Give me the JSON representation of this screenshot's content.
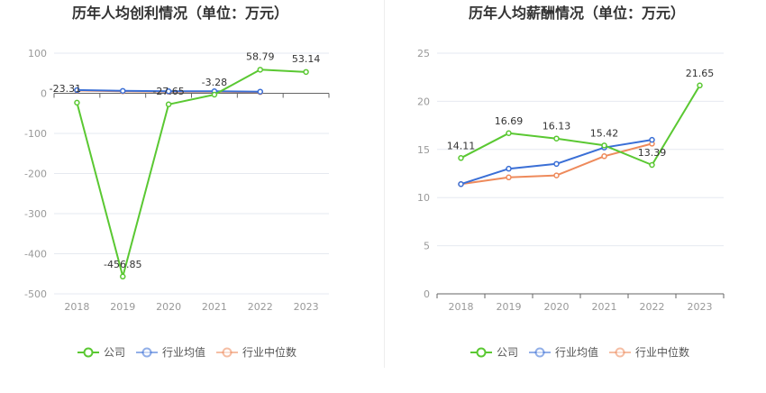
{
  "colors": {
    "company": "#5ac832",
    "industry_avg": "#3a6fd6",
    "industry_median": "#ee8a5b",
    "grid": "#e6e9f0",
    "axis": "#666666",
    "divider": "#eeeeee"
  },
  "legend": {
    "company": "公司",
    "industry_avg": "行业均值",
    "industry_median": "行业中位数"
  },
  "chart_data": [
    {
      "type": "line",
      "title": "历年人均创利情况（单位：万元）",
      "categories": [
        "2018",
        "2019",
        "2020",
        "2021",
        "2022",
        "2023"
      ],
      "ylim": [
        -500,
        100
      ],
      "yticks": [
        "100",
        "0",
        "-100",
        "-200",
        "-300",
        "-400",
        "-500"
      ],
      "grid": true,
      "legend_position": "bottom",
      "series": [
        {
          "name": "公司",
          "key": "company",
          "values": [
            -23.31,
            -456.85,
            -27.65,
            -3.28,
            58.79,
            53.14
          ],
          "labels": [
            "-23.31",
            "-456.85",
            "-27.65",
            "-3.28",
            "58.79",
            "53.14"
          ]
        },
        {
          "name": "行业均值",
          "key": "industry_avg",
          "values": [
            8,
            6,
            5,
            5,
            4,
            null
          ]
        },
        {
          "name": "行业中位数",
          "key": "industry_median",
          "values": [
            7,
            5,
            4,
            4,
            3,
            null
          ]
        }
      ]
    },
    {
      "type": "line",
      "title": "历年人均薪酬情况（单位：万元）",
      "categories": [
        "2018",
        "2019",
        "2020",
        "2021",
        "2022",
        "2023"
      ],
      "ylim": [
        0,
        25
      ],
      "yticks": [
        "25",
        "20",
        "15",
        "10",
        "5",
        "0"
      ],
      "grid": true,
      "legend_position": "bottom",
      "series": [
        {
          "name": "公司",
          "key": "company",
          "values": [
            14.11,
            16.69,
            16.13,
            15.42,
            13.39,
            21.65
          ],
          "labels": [
            "14.11",
            "16.69",
            "16.13",
            "15.42",
            "13.39",
            "21.65"
          ]
        },
        {
          "name": "行业均值",
          "key": "industry_avg",
          "values": [
            11.4,
            13.0,
            13.5,
            15.2,
            16.0,
            null
          ]
        },
        {
          "name": "行业中位数",
          "key": "industry_median",
          "values": [
            11.4,
            12.1,
            12.3,
            14.3,
            15.6,
            null
          ]
        }
      ]
    }
  ]
}
